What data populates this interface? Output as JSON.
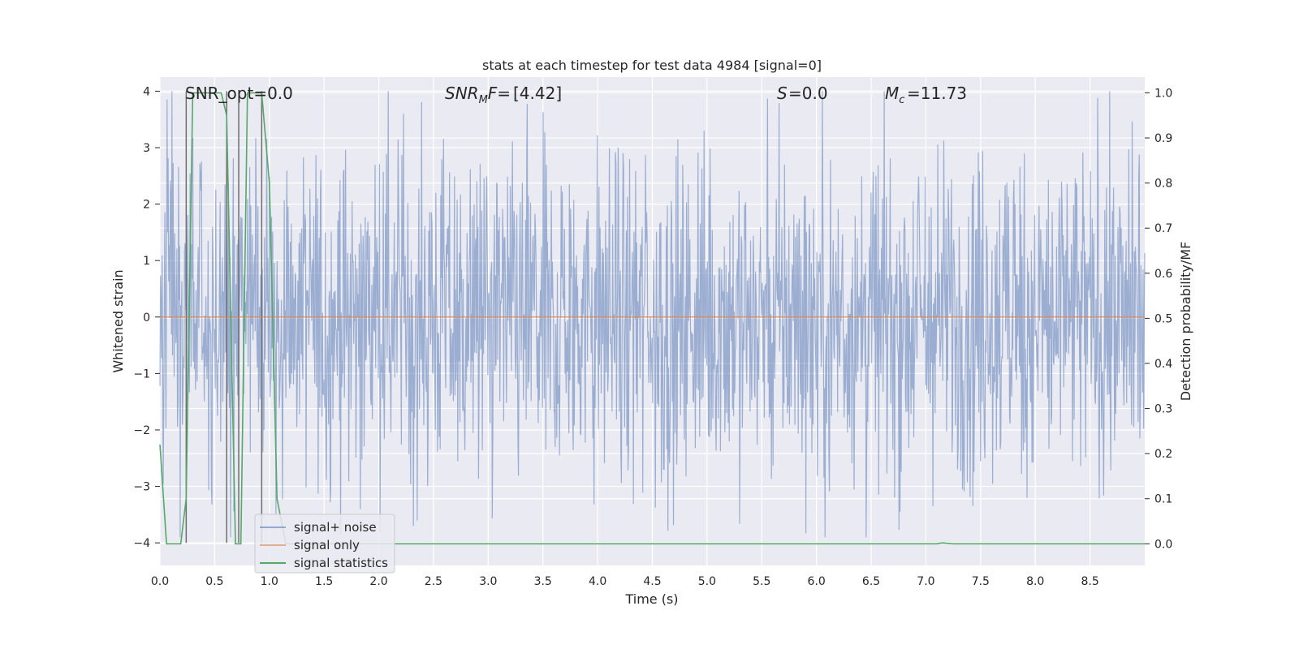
{
  "chart_data": {
    "type": "line",
    "title": "stats at each timestep for test data 4984 [signal=0]",
    "xlabel": "Time (s)",
    "ylabel_left": "Whitened strain",
    "ylabel_right": "Detection probability/MF",
    "xlim": [
      0.0,
      9.0
    ],
    "ylim_left": [
      -4.4,
      4.25
    ],
    "ylim_right": [
      -0.048,
      1.035
    ],
    "x_ticks": [
      "0.0",
      "0.5",
      "1.0",
      "1.5",
      "2.0",
      "2.5",
      "3.0",
      "3.5",
      "4.0",
      "4.5",
      "5.0",
      "5.5",
      "6.0",
      "6.5",
      "7.0",
      "7.5",
      "8.0",
      "8.5"
    ],
    "y_ticks_left": [
      "−4",
      "−3",
      "−2",
      "−1",
      "0",
      "1",
      "2",
      "3",
      "4"
    ],
    "y_ticks_right": [
      "0.0",
      "0.1",
      "0.2",
      "0.3",
      "0.4",
      "0.5",
      "0.6",
      "0.7",
      "0.8",
      "0.9",
      "1.0"
    ],
    "grid": true,
    "annotations": {
      "snr_opt": "SNR_opt=0.0",
      "snr_mf": "[4.42]",
      "s_value": "=0.0",
      "mc_value": "=11.73"
    },
    "legend": {
      "placement": "lower-left",
      "entries": [
        {
          "label": "signal+ noise",
          "color": "#4c72b0"
        },
        {
          "label": "signal only",
          "color": "#dd8452"
        },
        {
          "label": "signal statistics",
          "color": "#55a868"
        }
      ]
    },
    "series": [
      {
        "name": "signal+ noise",
        "axis": "left",
        "color": "#4c72b0",
        "x_range": [
          0.0,
          9.0
        ],
        "samples": 1800,
        "amplitude_band": [
          -2.0,
          2.0
        ],
        "peak_range": [
          -3.9,
          4.0
        ]
      },
      {
        "name": "signal only",
        "axis": "left",
        "color": "#dd8452",
        "x": [
          0.0,
          9.0
        ],
        "y": [
          0.0,
          0.0
        ]
      },
      {
        "name": "signal statistics",
        "axis": "right",
        "color": "#55a868",
        "x": [
          0.0,
          0.06,
          0.19,
          0.24,
          0.3,
          0.56,
          0.61,
          0.69,
          0.74,
          0.8,
          0.93,
          1.0,
          1.07,
          1.15,
          7.1,
          7.15,
          7.25,
          9.0
        ],
        "y": [
          0.22,
          0.0,
          0.0,
          0.1,
          1.0,
          1.0,
          0.95,
          0.0,
          0.0,
          1.0,
          1.0,
          0.8,
          0.1,
          0.0,
          0.0,
          0.002,
          0.0,
          0.0
        ]
      }
    ],
    "vertical_markers": {
      "color": "#6e6e6e",
      "x": [
        0.24,
        0.61,
        0.72,
        0.93
      ],
      "y_top": [
        4.0,
        4.0,
        3.8,
        4.0
      ]
    }
  }
}
